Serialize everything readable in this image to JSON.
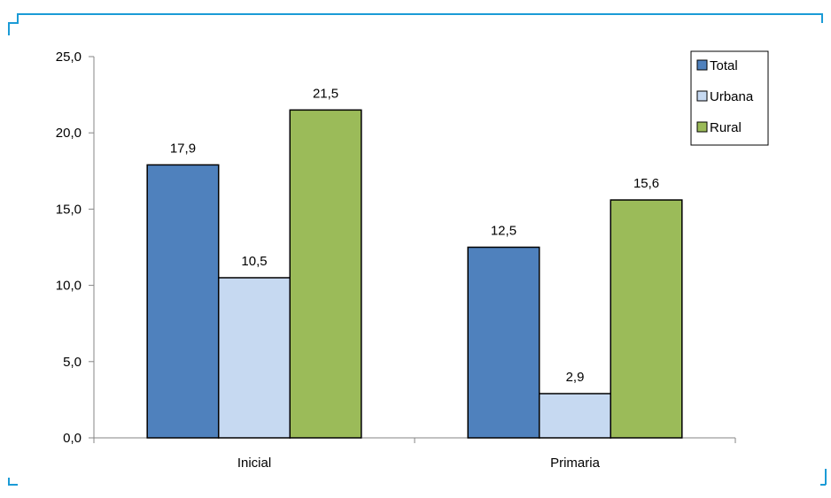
{
  "frame_color": "#1B9BD6",
  "chart_data": {
    "type": "bar",
    "title": "",
    "xlabel": "",
    "ylabel": "",
    "categories": [
      "Inicial",
      "Primaria"
    ],
    "series": [
      {
        "name": "Total",
        "color": "#4F81BD",
        "values": [
          17.9,
          12.5
        ],
        "labels": [
          "17,9",
          "12,5"
        ]
      },
      {
        "name": "Urbana",
        "color": "#C6D9F1",
        "values": [
          10.5,
          2.9
        ],
        "labels": [
          "10,5",
          "2,9"
        ]
      },
      {
        "name": "Rural",
        "color": "#9BBB59",
        "values": [
          21.5,
          15.6
        ],
        "labels": [
          "21,5",
          "15,6"
        ]
      }
    ],
    "ylim": [
      0,
      25
    ],
    "yticks": [
      0,
      5,
      10,
      15,
      20,
      25
    ],
    "ytick_labels": [
      "0,0",
      "5,0",
      "10,0",
      "15,0",
      "20,0",
      "25,0"
    ],
    "grid": false,
    "legend_position": "top-right"
  }
}
